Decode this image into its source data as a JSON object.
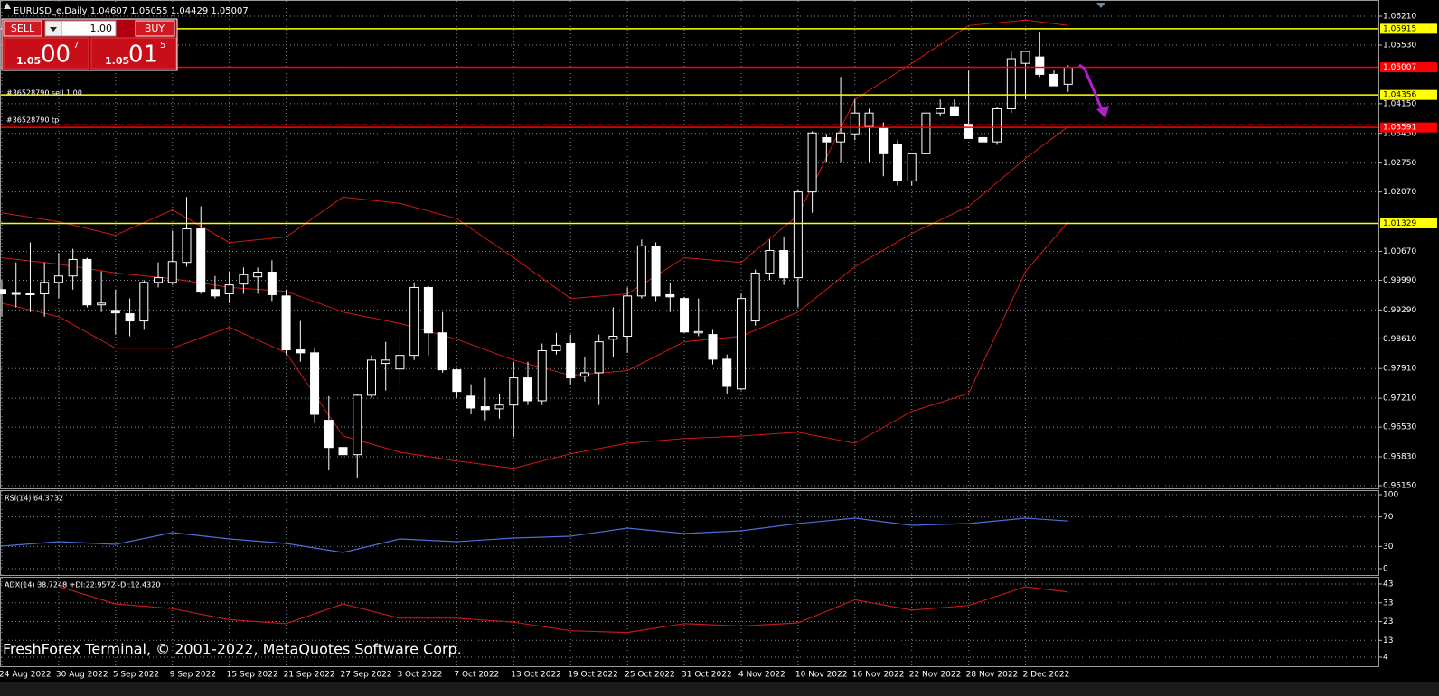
{
  "header": {
    "title": "EURUSD_e,Daily  1.04607 1.05055 1.04429 1.05007"
  },
  "trade_panel": {
    "sell": "SELL",
    "lots": "1.00",
    "buy": "BUY",
    "bid": {
      "prefix": "1.05",
      "big": "00",
      "small": "7"
    },
    "ask": {
      "prefix": "1.05",
      "big": "01",
      "small": "5"
    }
  },
  "watermark": "FreshForex Terminal, © 2001-2022, MetaQuotes Software Corp.",
  "chart_data": [
    {
      "type": "candlestick",
      "categories": [
        "24 Aug 2022",
        null,
        null,
        null,
        "30 Aug 2022",
        null,
        null,
        null,
        "5 Sep 2022",
        null,
        null,
        null,
        "9 Sep 2022",
        null,
        null,
        null,
        "15 Sep 2022",
        null,
        null,
        null,
        "21 Sep 2022",
        null,
        null,
        null,
        "27 Sep 2022",
        null,
        null,
        null,
        "3 Oct 2022",
        null,
        null,
        null,
        "7 Oct 2022",
        null,
        null,
        null,
        "13 Oct 2022",
        null,
        null,
        null,
        "19 Oct 2022",
        null,
        null,
        null,
        "25 Oct 2022",
        null,
        null,
        null,
        "31 Oct 2022",
        null,
        null,
        null,
        "4 Nov 2022",
        null,
        null,
        null,
        "10 Nov 2022",
        null,
        null,
        null,
        "16 Nov 2022",
        null,
        null,
        null,
        "22 Nov 2022",
        null,
        null,
        null,
        "28 Nov 2022",
        null,
        null,
        null,
        "2 Dec 2022",
        null,
        null,
        null
      ],
      "open": [
        0.9977,
        0.9967,
        0.9967,
        0.9967,
        0.9994,
        1.0009,
        1.0048,
        0.9941,
        0.9928,
        0.992,
        0.9903,
        0.9994,
        0.9994,
        1.0041,
        1.012,
        0.9977,
        0.9967,
        0.999,
        1.0007,
        1.0018,
        0.9962,
        0.9835,
        0.9828,
        0.9669,
        0.9605,
        0.9588,
        0.9728,
        0.9803,
        0.979,
        0.9822,
        0.9982,
        0.9875,
        0.9788,
        0.9726,
        0.9701,
        0.9696,
        0.9705,
        0.9769,
        0.9715,
        0.9833,
        0.985,
        0.9773,
        0.9781,
        0.986,
        0.9867,
        0.9962,
        1.0078,
        0.9965,
        0.9956,
        0.9875,
        0.9871,
        0.9813,
        0.9743,
        0.9903,
        1.0016,
        1.0069,
        1.0005,
        1.0207,
        1.0335,
        1.0325,
        1.0344,
        1.0361,
        1.0357,
        1.0318,
        1.0233,
        1.0297,
        1.0393,
        1.0408,
        1.0367,
        1.0335,
        1.0325,
        1.0403,
        1.051,
        1.0525,
        1.0484,
        1.04607
      ],
      "high": [
        0.9999,
        1.0041,
        1.0088,
        1.0041,
        1.0063,
        1.0073,
        1.0052,
        1.002,
        0.9977,
        0.9956,
        0.9999,
        1.0041,
        1.0116,
        1.0195,
        1.0173,
        1.0009,
        1.002,
        1.0029,
        1.0029,
        1.0046,
        0.9977,
        0.9903,
        0.9839,
        0.9726,
        0.9658,
        0.9732,
        0.9822,
        0.9854,
        0.9854,
        0.9994,
        0.9986,
        0.9924,
        0.979,
        0.9754,
        0.9769,
        0.9732,
        0.9807,
        0.9807,
        0.985,
        0.9875,
        0.9871,
        0.9818,
        0.9871,
        0.9935,
        0.9982,
        1.0095,
        1.0088,
        0.9994,
        0.996,
        0.9956,
        0.9882,
        0.9824,
        0.9967,
        1.0024,
        1.0095,
        1.0101,
        1.0212,
        1.035,
        1.0344,
        1.0478,
        1.0425,
        1.0403,
        1.0371,
        1.0329,
        1.0297,
        1.0403,
        1.0425,
        1.0425,
        1.0493,
        1.0344,
        1.0408,
        1.0538,
        1.0538,
        1.0584,
        1.0495,
        1.05055
      ],
      "low": [
        0.9913,
        0.9935,
        0.9924,
        0.9913,
        0.9956,
        0.9977,
        0.9935,
        0.9924,
        0.9871,
        0.9867,
        0.9882,
        0.9982,
        0.9988,
        1.0031,
        0.9967,
        0.9956,
        0.9945,
        0.9967,
        0.9967,
        0.995,
        0.9824,
        0.9807,
        0.9662,
        0.9551,
        0.9566,
        0.9534,
        0.9722,
        0.9739,
        0.9754,
        0.9811,
        0.9822,
        0.9781,
        0.9722,
        0.9683,
        0.9669,
        0.9673,
        0.963,
        0.9705,
        0.9705,
        0.9824,
        0.9754,
        0.976,
        0.9705,
        0.9818,
        0.9828,
        0.9956,
        0.995,
        0.9924,
        0.9875,
        0.9867,
        0.9801,
        0.9732,
        0.974,
        0.9892,
        0.9999,
        0.9988,
        0.9935,
        1.0158,
        1.0276,
        1.0276,
        1.0329,
        1.0276,
        1.0244,
        1.0222,
        1.0222,
        1.0286,
        1.0386,
        1.0386,
        1.0333,
        1.0325,
        1.0318,
        1.0393,
        1.0425,
        1.0478,
        1.0457,
        1.04429
      ],
      "close": [
        0.9967,
        0.9968,
        0.9965,
        0.9994,
        1.0009,
        1.0048,
        0.9941,
        0.9945,
        0.9922,
        0.9903,
        0.9994,
        1.0005,
        1.0043,
        1.012,
        0.9971,
        0.9962,
        0.9988,
        1.0012,
        1.0018,
        0.9965,
        0.9835,
        0.9828,
        0.9683,
        0.9605,
        0.9588,
        0.9728,
        0.9811,
        0.9811,
        0.9822,
        0.9982,
        0.9875,
        0.9788,
        0.9737,
        0.9698,
        0.9694,
        0.9705,
        0.9769,
        0.9715,
        0.9833,
        0.9846,
        0.9769,
        0.9781,
        0.9854,
        0.9867,
        0.9962,
        1.008,
        0.9962,
        0.996,
        0.9877,
        0.9878,
        0.9813,
        0.9749,
        0.9956,
        1.0016,
        1.0069,
        1.0005,
        1.0207,
        1.0346,
        1.0325,
        1.0346,
        1.0393,
        1.0393,
        1.0297,
        1.0233,
        1.0297,
        1.0393,
        1.0403,
        1.0386,
        1.0333,
        1.0325,
        1.0403,
        1.0521,
        1.0538,
        1.0484,
        1.0457,
        1.05007
      ],
      "bands": {
        "color": "#d01818",
        "x": [
          0,
          4,
          8,
          12,
          16,
          20,
          24,
          28,
          32,
          36,
          40,
          44,
          48,
          52,
          56,
          60,
          64,
          68,
          72,
          75
        ],
        "upper": [
          1.0158,
          1.0137,
          1.0105,
          1.0165,
          1.0088,
          1.0101,
          1.0195,
          1.018,
          1.0144,
          1.0052,
          0.9956,
          0.9967,
          1.0052,
          1.0041,
          1.0152,
          1.0425,
          1.051,
          1.0599,
          1.0612,
          1.0599
        ],
        "middle": [
          1.0052,
          1.0037,
          1.0016,
          1.0003,
          0.9982,
          0.9973,
          0.9924,
          0.9897,
          0.986,
          0.9811,
          0.9775,
          0.9786,
          0.9854,
          0.9867,
          0.9924,
          1.0031,
          1.0109,
          1.0173,
          1.0286,
          1.0361
        ],
        "lower": [
          0.9945,
          0.9913,
          0.9839,
          0.9839,
          0.9888,
          0.9828,
          0.9632,
          0.9594,
          0.9573,
          0.9556,
          0.959,
          0.9615,
          0.9626,
          0.9632,
          0.9641,
          0.9615,
          0.969,
          0.9732,
          1.002,
          1.0137
        ]
      },
      "levels": [
        {
          "value": 1.05915,
          "color": "#ffff00"
        },
        {
          "value": 1.05007,
          "color": "#ff0000"
        },
        {
          "value": 1.04356,
          "color": "#ffff00"
        },
        {
          "value": 1.03591,
          "color": "#ff0000"
        },
        {
          "value": 1.01329,
          "color": "#ffff00"
        }
      ],
      "annotations": [
        "#36528790 sell 1.00",
        "#36528790 tp"
      ],
      "ylim": [
        0.9515,
        1.0621
      ],
      "yticks": [
        {
          "value": 1.0621,
          "label": "1.06210"
        },
        {
          "value": 1.0553,
          "label": "1.05530"
        },
        {
          "value": 1.0415,
          "label": "1.04150"
        },
        {
          "value": 1.0345,
          "label": "1.03450"
        },
        {
          "value": 1.0275,
          "label": "1.02750"
        },
        {
          "value": 1.0207,
          "label": "1.02070"
        },
        {
          "value": 1.0067,
          "label": "1.00670"
        },
        {
          "value": 0.9999,
          "label": "0.99990"
        },
        {
          "value": 0.9929,
          "label": "0.99290"
        },
        {
          "value": 0.9861,
          "label": "0.98610"
        },
        {
          "value": 0.9791,
          "label": "0.97910"
        },
        {
          "value": 0.9721,
          "label": "0.97210"
        },
        {
          "value": 0.9653,
          "label": "0.96530"
        },
        {
          "value": 0.9583,
          "label": "0.95830"
        },
        {
          "value": 0.9515,
          "label": "0.95150"
        }
      ],
      "grid": true
    },
    {
      "type": "line",
      "title": "RSI(14) 64.3732",
      "color": "#4a70d8",
      "x": [
        0,
        4,
        8,
        12,
        16,
        20,
        24,
        28,
        32,
        36,
        40,
        44,
        48,
        52,
        56,
        60,
        64,
        68,
        72,
        75
      ],
      "values": [
        30.5,
        36.6,
        32.9,
        48.8,
        40.2,
        34.1,
        22.0,
        40.2,
        36.6,
        41.5,
        43.9,
        54.9,
        47.6,
        51.2,
        61.0,
        68.3,
        58.5,
        61.0,
        68.3,
        64.4
      ],
      "ylim": [
        0,
        100
      ],
      "yticks": [
        100,
        70,
        30,
        0
      ],
      "grid": true
    },
    {
      "type": "line",
      "title": "ADX(14) 38.7248 +DI:22.9572 -DI:12.4320",
      "color": "#c0181c",
      "x": [
        0,
        4,
        8,
        12,
        16,
        20,
        24,
        28,
        32,
        36,
        40,
        44,
        48,
        52,
        56,
        60,
        64,
        68,
        72,
        75
      ],
      "values": [
        null,
        41.7,
        32.4,
        29.9,
        24.0,
        21.9,
        32.4,
        24.8,
        24.8,
        22.7,
        18.1,
        17.2,
        21.9,
        20.6,
        22.3,
        34.6,
        29.1,
        31.6,
        41.5,
        38.7
      ],
      "ylim": [
        4,
        43
      ],
      "yticks": [
        43,
        33,
        23,
        13,
        4
      ],
      "grid": true
    }
  ]
}
